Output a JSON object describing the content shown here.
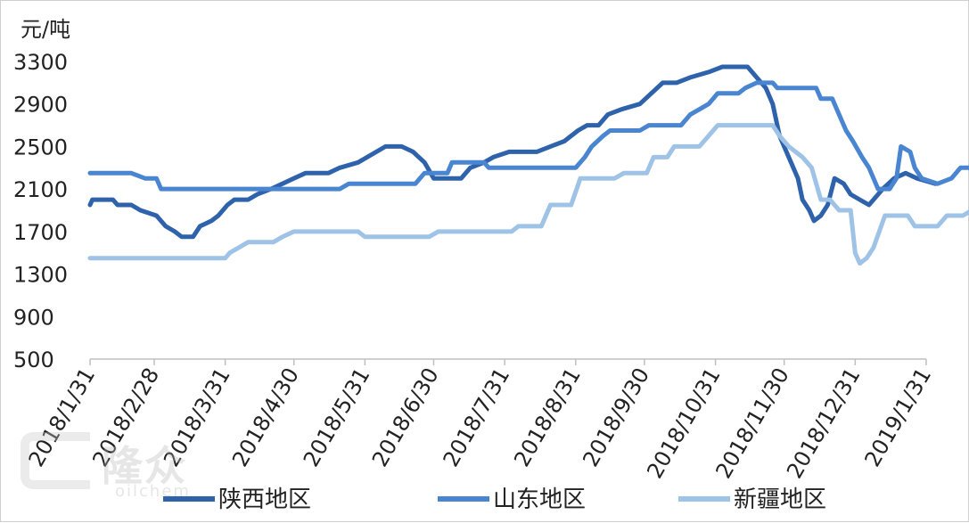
{
  "chart_data": {
    "type": "line",
    "unit_label": "元/吨",
    "x_tick_labels": [
      "2018/1/31",
      "2018/2/28",
      "2018/3/31",
      "2018/4/30",
      "2018/5/31",
      "2018/6/30",
      "2018/7/31",
      "2018/8/31",
      "2018/9/30",
      "2018/10/31",
      "2018/11/30",
      "2018/12/31",
      "2019/1/31"
    ],
    "ylim": [
      500,
      3300
    ],
    "y_ticks": [
      500,
      900,
      1300,
      1700,
      2100,
      2500,
      2900,
      3300
    ],
    "y_tick_labels": [
      "500",
      "900",
      "1300",
      "1700",
      "2100",
      "2500",
      "2900",
      "3300"
    ],
    "grid": false,
    "legend_position": "bottom",
    "series": [
      {
        "name": "陕西地区",
        "color": "#2e62ab",
        "points": [
          [
            "2018-01-31",
            1950
          ],
          [
            "2018-02-01",
            2000
          ],
          [
            "2018-02-10",
            2000
          ],
          [
            "2018-02-12",
            1950
          ],
          [
            "2018-02-18",
            1950
          ],
          [
            "2018-02-22",
            1900
          ],
          [
            "2018-03-01",
            1850
          ],
          [
            "2018-03-05",
            1750
          ],
          [
            "2018-03-09",
            1700
          ],
          [
            "2018-03-12",
            1650
          ],
          [
            "2018-03-17",
            1650
          ],
          [
            "2018-03-20",
            1750
          ],
          [
            "2018-03-25",
            1800
          ],
          [
            "2018-03-28",
            1850
          ],
          [
            "2018-04-01",
            1950
          ],
          [
            "2018-04-04",
            2000
          ],
          [
            "2018-04-10",
            2000
          ],
          [
            "2018-04-14",
            2050
          ],
          [
            "2018-04-20",
            2100
          ],
          [
            "2018-04-25",
            2150
          ],
          [
            "2018-04-30",
            2200
          ],
          [
            "2018-05-05",
            2250
          ],
          [
            "2018-05-15",
            2250
          ],
          [
            "2018-05-20",
            2300
          ],
          [
            "2018-05-28",
            2350
          ],
          [
            "2018-06-05",
            2450
          ],
          [
            "2018-06-09",
            2500
          ],
          [
            "2018-06-16",
            2500
          ],
          [
            "2018-06-21",
            2450
          ],
          [
            "2018-06-26",
            2350
          ],
          [
            "2018-06-30",
            2200
          ],
          [
            "2018-07-12",
            2200
          ],
          [
            "2018-07-16",
            2300
          ],
          [
            "2018-07-22",
            2350
          ],
          [
            "2018-07-26",
            2400
          ],
          [
            "2018-08-02",
            2450
          ],
          [
            "2018-08-14",
            2450
          ],
          [
            "2018-08-20",
            2500
          ],
          [
            "2018-08-26",
            2550
          ],
          [
            "2018-09-01",
            2650
          ],
          [
            "2018-09-05",
            2700
          ],
          [
            "2018-09-10",
            2700
          ],
          [
            "2018-09-14",
            2800
          ],
          [
            "2018-09-20",
            2850
          ],
          [
            "2018-09-28",
            2900
          ],
          [
            "2018-10-03",
            3000
          ],
          [
            "2018-10-08",
            3100
          ],
          [
            "2018-10-14",
            3100
          ],
          [
            "2018-10-20",
            3150
          ],
          [
            "2018-10-28",
            3200
          ],
          [
            "2018-11-03",
            3250
          ],
          [
            "2018-11-14",
            3250
          ],
          [
            "2018-11-18",
            3150
          ],
          [
            "2018-11-22",
            3050
          ],
          [
            "2018-11-25",
            2900
          ],
          [
            "2018-11-28",
            2600
          ],
          [
            "2018-12-02",
            2400
          ],
          [
            "2018-12-06",
            2200
          ],
          [
            "2018-12-08",
            2000
          ],
          [
            "2018-12-11",
            1900
          ],
          [
            "2018-12-13",
            1800
          ],
          [
            "2018-12-16",
            1850
          ],
          [
            "2018-12-19",
            1950
          ],
          [
            "2018-12-22",
            2200
          ],
          [
            "2018-12-26",
            2150
          ],
          [
            "2018-12-29",
            2050
          ],
          [
            "2019-01-02",
            2000
          ],
          [
            "2019-01-06",
            1950
          ],
          [
            "2019-01-12",
            2100
          ],
          [
            "2019-01-17",
            2200
          ],
          [
            "2019-01-22",
            2250
          ],
          [
            "2019-01-27",
            2200
          ],
          [
            "2019-02-04",
            2150
          ]
        ]
      },
      {
        "name": "山东地区",
        "color": "#4a85d1",
        "points": [
          [
            "2018-01-31",
            2250
          ],
          [
            "2018-02-18",
            2250
          ],
          [
            "2018-02-24",
            2200
          ],
          [
            "2018-03-01",
            2200
          ],
          [
            "2018-03-03",
            2100
          ],
          [
            "2018-05-20",
            2100
          ],
          [
            "2018-05-24",
            2150
          ],
          [
            "2018-06-22",
            2150
          ],
          [
            "2018-06-26",
            2250
          ],
          [
            "2018-07-06",
            2250
          ],
          [
            "2018-07-08",
            2350
          ],
          [
            "2018-07-22",
            2350
          ],
          [
            "2018-07-24",
            2300
          ],
          [
            "2018-08-31",
            2300
          ],
          [
            "2018-09-04",
            2400
          ],
          [
            "2018-09-07",
            2500
          ],
          [
            "2018-09-12",
            2600
          ],
          [
            "2018-09-15",
            2650
          ],
          [
            "2018-09-28",
            2650
          ],
          [
            "2018-10-02",
            2700
          ],
          [
            "2018-10-16",
            2700
          ],
          [
            "2018-10-20",
            2800
          ],
          [
            "2018-10-24",
            2850
          ],
          [
            "2018-10-28",
            2900
          ],
          [
            "2018-11-01",
            3000
          ],
          [
            "2018-11-10",
            3000
          ],
          [
            "2018-11-13",
            3050
          ],
          [
            "2018-11-18",
            3100
          ],
          [
            "2018-11-25",
            3100
          ],
          [
            "2018-11-27",
            3050
          ],
          [
            "2018-12-14",
            3050
          ],
          [
            "2018-12-16",
            2950
          ],
          [
            "2018-12-21",
            2950
          ],
          [
            "2018-12-24",
            2800
          ],
          [
            "2018-12-27",
            2650
          ],
          [
            "2018-12-30",
            2550
          ],
          [
            "2019-01-03",
            2400
          ],
          [
            "2019-01-06",
            2300
          ],
          [
            "2019-01-08",
            2200
          ],
          [
            "2019-01-10",
            2100
          ],
          [
            "2019-01-15",
            2100
          ],
          [
            "2019-01-18",
            2200
          ],
          [
            "2019-01-20",
            2500
          ],
          [
            "2019-01-24",
            2450
          ],
          [
            "2019-01-26",
            2300
          ],
          [
            "2019-01-29",
            2200
          ],
          [
            "2019-02-05",
            2150
          ],
          [
            "2019-02-11",
            2200
          ],
          [
            "2019-02-15",
            2300
          ],
          [
            "2019-03-04",
            2300
          ],
          [
            "2019-03-05",
            2250
          ]
        ]
      },
      {
        "name": "新疆地区",
        "color": "#9fc3e7",
        "points": [
          [
            "2018-01-31",
            1450
          ],
          [
            "2018-03-31",
            1450
          ],
          [
            "2018-04-02",
            1500
          ],
          [
            "2018-04-06",
            1550
          ],
          [
            "2018-04-10",
            1600
          ],
          [
            "2018-04-21",
            1600
          ],
          [
            "2018-04-25",
            1650
          ],
          [
            "2018-04-30",
            1700
          ],
          [
            "2018-05-28",
            1700
          ],
          [
            "2018-05-31",
            1650
          ],
          [
            "2018-06-28",
            1650
          ],
          [
            "2018-07-02",
            1700
          ],
          [
            "2018-08-03",
            1700
          ],
          [
            "2018-08-06",
            1750
          ],
          [
            "2018-08-16",
            1750
          ],
          [
            "2018-08-20",
            1950
          ],
          [
            "2018-08-29",
            1950
          ],
          [
            "2018-09-02",
            2200
          ],
          [
            "2018-09-17",
            2200
          ],
          [
            "2018-09-21",
            2250
          ],
          [
            "2018-10-01",
            2250
          ],
          [
            "2018-10-04",
            2400
          ],
          [
            "2018-10-10",
            2400
          ],
          [
            "2018-10-13",
            2500
          ],
          [
            "2018-10-24",
            2500
          ],
          [
            "2018-10-28",
            2600
          ],
          [
            "2018-11-01",
            2700
          ],
          [
            "2018-11-25",
            2700
          ],
          [
            "2018-11-28",
            2600
          ],
          [
            "2018-12-02",
            2500
          ],
          [
            "2018-12-08",
            2400
          ],
          [
            "2018-12-12",
            2300
          ],
          [
            "2018-12-16",
            2000
          ],
          [
            "2018-12-20",
            2000
          ],
          [
            "2018-12-24",
            1900
          ],
          [
            "2018-12-29",
            1900
          ],
          [
            "2018-12-31",
            1500
          ],
          [
            "2019-01-02",
            1400
          ],
          [
            "2019-01-05",
            1450
          ],
          [
            "2019-01-08",
            1550
          ],
          [
            "2019-01-13",
            1850
          ],
          [
            "2019-01-23",
            1850
          ],
          [
            "2019-01-26",
            1750
          ],
          [
            "2019-02-05",
            1750
          ],
          [
            "2019-02-09",
            1850
          ],
          [
            "2019-02-16",
            1850
          ],
          [
            "2019-02-20",
            1900
          ],
          [
            "2019-03-05",
            1900
          ]
        ]
      }
    ]
  },
  "watermark": {
    "brand": "隆众",
    "sub": "oilchem"
  }
}
